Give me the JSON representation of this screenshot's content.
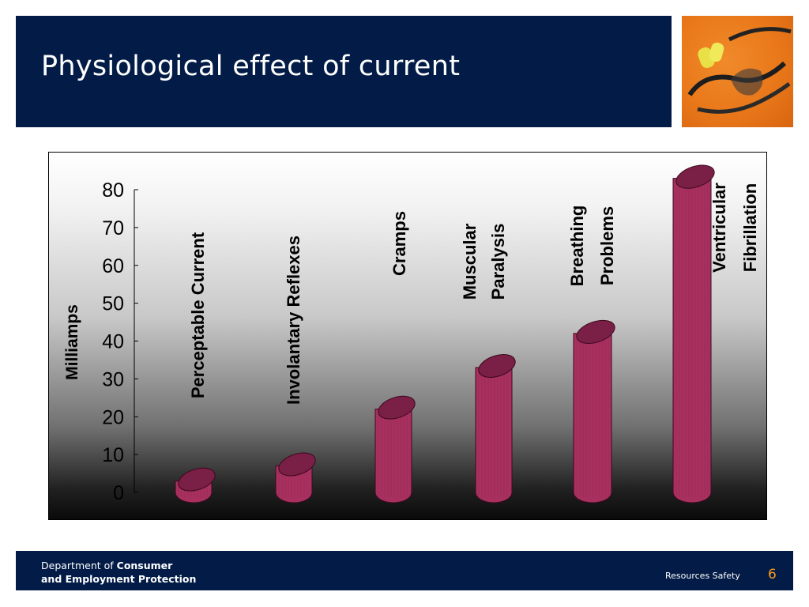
{
  "slide": {
    "title": "Physiological effect of current",
    "footer": {
      "dept_line1_prefix": "Department of ",
      "dept_line1_bold": "Consumer",
      "dept_line2": "and Employment Protection",
      "unit": "Resources Safety",
      "page_number": "6"
    },
    "photo_icon": "safety-glasses-and-earplugs-photo"
  },
  "colors": {
    "header_bg": "#031c47",
    "bar_fill": "#a8305f",
    "bar_top": "#7a1f45",
    "page_number": "#ff9a1a"
  },
  "chart_data": {
    "type": "bar",
    "ylabel": "Milliamps",
    "ylim": [
      0,
      80
    ],
    "yticks": [
      "0",
      "10",
      "20",
      "30",
      "40",
      "50",
      "60",
      "70",
      "80"
    ],
    "categories": [
      [
        "Perceptable Current"
      ],
      [
        "Involantary Reflexes"
      ],
      [
        "Cramps"
      ],
      [
        "Muscular",
        "Paralysis"
      ],
      [
        "Breathing",
        "Problems"
      ],
      [
        "Ventricular",
        "Fibrillation"
      ]
    ],
    "values": [
      3,
      7,
      22,
      33,
      42,
      83
    ],
    "grid": false,
    "legend": "none"
  }
}
